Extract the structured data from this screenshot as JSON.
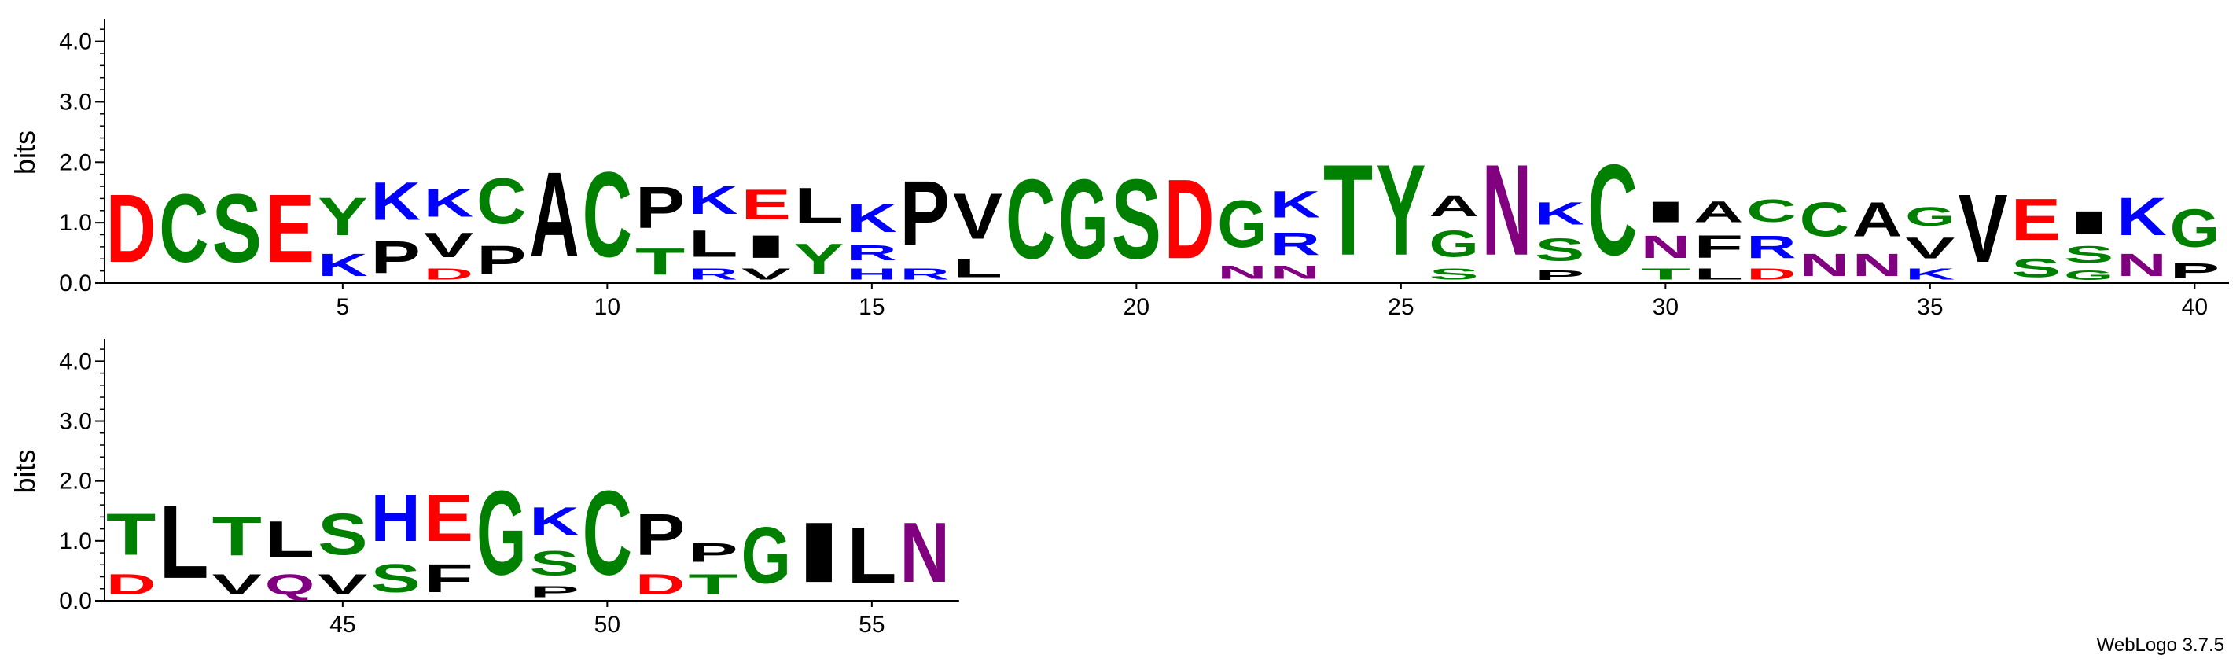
{
  "chart_data": {
    "type": "sequence-logo",
    "ylabel": "bits",
    "ylim": [
      0,
      4.32
    ],
    "yticks": [
      "0.0",
      "1.0",
      "2.0",
      "3.0",
      "4.0"
    ],
    "ytick_values": [
      0,
      1,
      2,
      3,
      4
    ],
    "colors": {
      "D": "#ff0000",
      "E": "#ff0000",
      "K": "#0000ff",
      "R": "#0000ff",
      "H": "#0000ff",
      "C": "#008000",
      "G": "#008000",
      "S": "#008000",
      "T": "#008000",
      "Y": "#008000",
      "N": "#800080",
      "Q": "#800080",
      "A": "#000000",
      "V": "#000000",
      "L": "#000000",
      "I": "#000000",
      "P": "#000000",
      "F": "#000000",
      "M": "#000000",
      "W": "#000000"
    },
    "panels": [
      {
        "first_position": 1,
        "last_position": 40,
        "xtick_positions": [
          5,
          10,
          15,
          20,
          25,
          30,
          35,
          40
        ],
        "xtick_labels": [
          "5",
          "10",
          "15",
          "20",
          "25",
          "30",
          "35",
          "40"
        ],
        "columns": [
          {
            "pos": 1,
            "stack": [
              {
                "letter": "D",
                "height": 1.8
              }
            ]
          },
          {
            "pos": 2,
            "stack": [
              {
                "letter": "C",
                "height": 1.8
              }
            ]
          },
          {
            "pos": 3,
            "stack": [
              {
                "letter": "S",
                "height": 1.8
              }
            ]
          },
          {
            "pos": 4,
            "stack": [
              {
                "letter": "E",
                "height": 1.8
              }
            ]
          },
          {
            "pos": 5,
            "stack": [
              {
                "letter": "K",
                "height": 0.6
              },
              {
                "letter": "Y",
                "height": 1.0
              }
            ]
          },
          {
            "pos": 6,
            "stack": [
              {
                "letter": "P",
                "height": 0.85
              },
              {
                "letter": "K",
                "height": 1.0
              }
            ]
          },
          {
            "pos": 7,
            "stack": [
              {
                "letter": "D",
                "height": 0.3
              },
              {
                "letter": "V",
                "height": 0.65
              },
              {
                "letter": "K",
                "height": 0.75
              }
            ]
          },
          {
            "pos": 8,
            "stack": [
              {
                "letter": "P",
                "height": 0.75
              },
              {
                "letter": "C",
                "height": 1.2
              }
            ]
          },
          {
            "pos": 9,
            "stack": [
              {
                "letter": "A",
                "height": 2.25
              }
            ]
          },
          {
            "pos": 10,
            "stack": [
              {
                "letter": "C",
                "height": 2.25
              }
            ]
          },
          {
            "pos": 11,
            "stack": [
              {
                "letter": "T",
                "height": 0.7
              },
              {
                "letter": "P",
                "height": 1.1
              }
            ]
          },
          {
            "pos": 12,
            "stack": [
              {
                "letter": "R",
                "height": 0.3
              },
              {
                "letter": "L",
                "height": 0.7
              },
              {
                "letter": "K",
                "height": 0.75
              }
            ]
          },
          {
            "pos": 13,
            "stack": [
              {
                "letter": "V",
                "height": 0.3
              },
              {
                "letter": "I",
                "height": 0.6
              },
              {
                "letter": "E",
                "height": 0.8
              }
            ]
          },
          {
            "pos": 14,
            "stack": [
              {
                "letter": "Y",
                "height": 0.8
              },
              {
                "letter": "L",
                "height": 0.95
              }
            ]
          },
          {
            "pos": 15,
            "stack": [
              {
                "letter": "H",
                "height": 0.3
              },
              {
                "letter": "R",
                "height": 0.4
              },
              {
                "letter": "K",
                "height": 0.75
              }
            ]
          },
          {
            "pos": 16,
            "stack": [
              {
                "letter": "R",
                "height": 0.3
              },
              {
                "letter": "P",
                "height": 1.7
              }
            ]
          },
          {
            "pos": 17,
            "stack": [
              {
                "letter": "L",
                "height": 0.5
              },
              {
                "letter": "V",
                "height": 1.2
              }
            ]
          },
          {
            "pos": 18,
            "stack": [
              {
                "letter": "C",
                "height": 2.1
              }
            ]
          },
          {
            "pos": 19,
            "stack": [
              {
                "letter": "G",
                "height": 2.1
              }
            ]
          },
          {
            "pos": 20,
            "stack": [
              {
                "letter": "S",
                "height": 2.1
              }
            ]
          },
          {
            "pos": 21,
            "stack": [
              {
                "letter": "D",
                "height": 2.1
              }
            ]
          },
          {
            "pos": 22,
            "stack": [
              {
                "letter": "N",
                "height": 0.35
              },
              {
                "letter": "G",
                "height": 1.25
              }
            ]
          },
          {
            "pos": 23,
            "stack": [
              {
                "letter": "N",
                "height": 0.35
              },
              {
                "letter": "R",
                "height": 0.6
              },
              {
                "letter": "K",
                "height": 0.7
              }
            ]
          },
          {
            "pos": 24,
            "stack": [
              {
                "letter": "T",
                "height": 2.4
              }
            ]
          },
          {
            "pos": 25,
            "stack": [
              {
                "letter": "Y",
                "height": 2.4
              }
            ]
          },
          {
            "pos": 26,
            "stack": [
              {
                "letter": "S",
                "height": 0.3
              },
              {
                "letter": "G",
                "height": 0.7
              },
              {
                "letter": "A",
                "height": 0.55
              }
            ]
          },
          {
            "pos": 27,
            "stack": [
              {
                "letter": "N",
                "height": 2.4
              }
            ]
          },
          {
            "pos": 28,
            "stack": [
              {
                "letter": "P",
                "height": 0.25
              },
              {
                "letter": "S",
                "height": 0.6
              },
              {
                "letter": "K",
                "height": 0.6
              }
            ]
          },
          {
            "pos": 29,
            "stack": [
              {
                "letter": "C",
                "height": 2.4
              }
            ]
          },
          {
            "pos": 30,
            "stack": [
              {
                "letter": "T",
                "height": 0.3
              },
              {
                "letter": "N",
                "height": 0.6
              },
              {
                "letter": "I",
                "height": 0.55
              }
            ]
          },
          {
            "pos": 31,
            "stack": [
              {
                "letter": "L",
                "height": 0.3
              },
              {
                "letter": "F",
                "height": 0.6
              },
              {
                "letter": "A",
                "height": 0.55
              }
            ]
          },
          {
            "pos": 32,
            "stack": [
              {
                "letter": "D",
                "height": 0.3
              },
              {
                "letter": "R",
                "height": 0.6
              },
              {
                "letter": "C",
                "height": 0.6
              }
            ]
          },
          {
            "pos": 33,
            "stack": [
              {
                "letter": "N",
                "height": 0.6
              },
              {
                "letter": "C",
                "height": 0.9
              }
            ]
          },
          {
            "pos": 34,
            "stack": [
              {
                "letter": "N",
                "height": 0.6
              },
              {
                "letter": "A",
                "height": 0.9
              }
            ]
          },
          {
            "pos": 35,
            "stack": [
              {
                "letter": "K",
                "height": 0.3
              },
              {
                "letter": "V",
                "height": 0.55
              },
              {
                "letter": "G",
                "height": 0.5
              }
            ]
          },
          {
            "pos": 36,
            "stack": [
              {
                "letter": "V",
                "height": 1.8
              }
            ]
          },
          {
            "pos": 37,
            "stack": [
              {
                "letter": "S",
                "height": 0.5
              },
              {
                "letter": "E",
                "height": 1.1
              }
            ]
          },
          {
            "pos": 38,
            "stack": [
              {
                "letter": "G",
                "height": 0.25
              },
              {
                "letter": "S",
                "height": 0.45
              },
              {
                "letter": "I",
                "height": 0.6
              }
            ]
          },
          {
            "pos": 39,
            "stack": [
              {
                "letter": "N",
                "height": 0.6
              },
              {
                "letter": "K",
                "height": 1.0
              }
            ]
          },
          {
            "pos": 40,
            "stack": [
              {
                "letter": "P",
                "height": 0.4
              },
              {
                "letter": "G",
                "height": 1.0
              }
            ]
          }
        ]
      },
      {
        "first_position": 41,
        "last_position": 56,
        "xtick_positions": [
          45,
          50,
          55
        ],
        "xtick_labels": [
          "45",
          "50",
          "55"
        ],
        "columns": [
          {
            "pos": 41,
            "stack": [
              {
                "letter": "D",
                "height": 0.55
              },
              {
                "letter": "T",
                "height": 1.1
              }
            ]
          },
          {
            "pos": 42,
            "stack": [
              {
                "letter": "L",
                "height": 1.95
              }
            ]
          },
          {
            "pos": 43,
            "stack": [
              {
                "letter": "V",
                "height": 0.55
              },
              {
                "letter": "T",
                "height": 1.05
              }
            ]
          },
          {
            "pos": 44,
            "stack": [
              {
                "letter": "Q",
                "height": 0.55
              },
              {
                "letter": "L",
                "height": 0.95
              }
            ]
          },
          {
            "pos": 45,
            "stack": [
              {
                "letter": "V",
                "height": 0.55
              },
              {
                "letter": "S",
                "height": 1.1
              }
            ]
          },
          {
            "pos": 46,
            "stack": [
              {
                "letter": "S",
                "height": 0.75
              },
              {
                "letter": "H",
                "height": 1.25
              }
            ]
          },
          {
            "pos": 47,
            "stack": [
              {
                "letter": "F",
                "height": 0.75
              },
              {
                "letter": "E",
                "height": 1.25
              }
            ]
          },
          {
            "pos": 48,
            "stack": [
              {
                "letter": "G",
                "height": 2.25
              }
            ]
          },
          {
            "pos": 49,
            "stack": [
              {
                "letter": "P",
                "height": 0.3
              },
              {
                "letter": "S",
                "height": 0.65
              },
              {
                "letter": "K",
                "height": 0.75
              }
            ]
          },
          {
            "pos": 50,
            "stack": [
              {
                "letter": "C",
                "height": 2.25
              }
            ]
          },
          {
            "pos": 51,
            "stack": [
              {
                "letter": "D",
                "height": 0.55
              },
              {
                "letter": "P",
                "height": 1.1
              }
            ]
          },
          {
            "pos": 52,
            "stack": [
              {
                "letter": "T",
                "height": 0.55
              },
              {
                "letter": "P",
                "height": 0.5
              }
            ]
          },
          {
            "pos": 53,
            "stack": [
              {
                "letter": "G",
                "height": 1.5
              }
            ]
          },
          {
            "pos": 54,
            "stack": [
              {
                "letter": "I",
                "height": 1.6
              }
            ]
          },
          {
            "pos": 55,
            "stack": [
              {
                "letter": "L",
                "height": 1.5
              }
            ]
          },
          {
            "pos": 56,
            "stack": [
              {
                "letter": "N",
                "height": 1.6
              }
            ]
          }
        ]
      }
    ]
  },
  "credit": "WebLogo 3.7.5"
}
